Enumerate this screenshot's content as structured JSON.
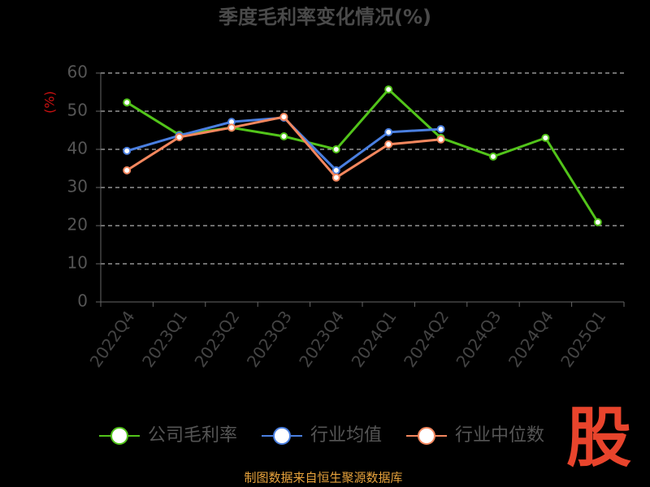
{
  "chart_data": {
    "type": "line",
    "title": "季度毛利率变化情况(%)",
    "y_label": "(%)",
    "categories": [
      "2022Q4",
      "2023Q1",
      "2023Q2",
      "2023Q3",
      "2023Q4",
      "2024Q1",
      "2024Q2",
      "2024Q3",
      "2024Q4",
      "2025Q1"
    ],
    "series": [
      {
        "name": "公司毛利率",
        "color": "#52c41a",
        "values": [
          52.3,
          43.8,
          45.7,
          43.4,
          40.0,
          55.7,
          43.0,
          38.1,
          43.0,
          20.9
        ]
      },
      {
        "name": "行业均值",
        "color": "#4a7fe0",
        "values": [
          39.6,
          43.6,
          47.2,
          48.3,
          34.5,
          44.5,
          45.3,
          null,
          null,
          null
        ]
      },
      {
        "name": "行业中位数",
        "color": "#f4875e",
        "values": [
          34.5,
          43.2,
          45.7,
          48.5,
          32.6,
          41.3,
          42.6,
          null,
          null,
          null
        ]
      }
    ],
    "ylim": [
      0,
      60
    ],
    "yticks": [
      0,
      10,
      20,
      30,
      40,
      50,
      60
    ],
    "grid": true,
    "legend": "bottom"
  },
  "source": "制图数据来自恒生聚源数据库",
  "logo": "股"
}
